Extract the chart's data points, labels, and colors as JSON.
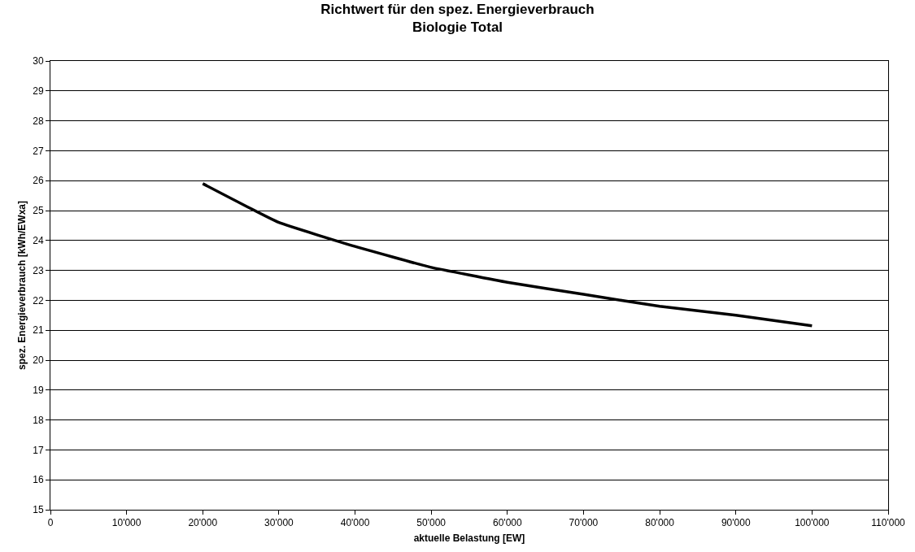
{
  "chart_data": {
    "type": "line",
    "title": "Richtwert für den spez. Energieverbrauch\nBiologie Total",
    "xlabel": "aktuelle Belastung [EW]",
    "ylabel": "spez. Energieverbrauch [kWh/EWxa]",
    "x": [
      20000,
      30000,
      40000,
      50000,
      60000,
      70000,
      80000,
      90000,
      100000
    ],
    "series": [
      {
        "color": "#000000",
        "values": [
          25.9,
          24.6,
          23.8,
          23.1,
          22.6,
          22.2,
          21.8,
          21.5,
          21.15
        ]
      }
    ],
    "xlim": [
      0,
      110000
    ],
    "xticks": [
      0,
      {
        "value": 10000,
        "label": "10'000"
      },
      {
        "value": 20000,
        "label": "20'000"
      },
      {
        "value": 30000,
        "label": "30'000"
      },
      {
        "value": 40000,
        "label": "40'000"
      },
      {
        "value": 50000,
        "label": "50'000"
      },
      {
        "value": 60000,
        "label": "60'000"
      },
      {
        "value": 70000,
        "label": "70'000"
      },
      {
        "value": 80000,
        "label": "80'000"
      },
      {
        "value": 90000,
        "label": "90'000"
      },
      {
        "value": 100000,
        "label": "100'000"
      },
      {
        "value": 110000,
        "label": "110'000"
      }
    ],
    "ylim": [
      15,
      30
    ],
    "yticks": [
      15,
      16,
      17,
      18,
      19,
      20,
      21,
      22,
      23,
      24,
      25,
      26,
      27,
      28,
      29,
      30
    ],
    "grid": "y",
    "marker": "none",
    "line_style": "solid"
  }
}
